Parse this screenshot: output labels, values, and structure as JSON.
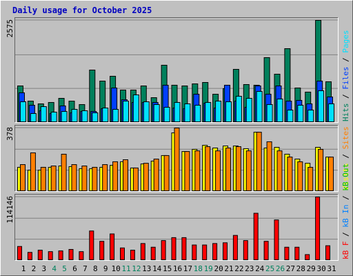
{
  "chart_data": {
    "type": "bar",
    "title": "Daily usage for October 2025",
    "categories": [
      "1",
      "2",
      "3",
      "4",
      "5",
      "6",
      "7",
      "8",
      "9",
      "10",
      "11",
      "12",
      "13",
      "14",
      "15",
      "16",
      "17",
      "18",
      "19",
      "20",
      "21",
      "22",
      "23",
      "24",
      "25",
      "26",
      "27",
      "28",
      "29",
      "30",
      "31"
    ],
    "weekend_color": "#00805c",
    "weekends": [
      false,
      false,
      false,
      true,
      true,
      false,
      false,
      false,
      false,
      false,
      true,
      true,
      false,
      false,
      false,
      false,
      false,
      true,
      true,
      false,
      false,
      false,
      false,
      false,
      true,
      true,
      false,
      false,
      false,
      false,
      false
    ],
    "panels": [
      {
        "ylim": [
          0,
          2575
        ],
        "yticks": [
          2575
        ],
        "series": [
          {
            "name": "Hits",
            "color": "#00805c",
            "values": [
              922,
              539,
              470,
              505,
              609,
              539,
              452,
              1322,
              1044,
              1166,
              818,
              818,
              922,
              626,
              1444,
              940,
              922,
              974,
              1009,
              713,
              853,
              1340,
              957,
              940,
              1636,
              1218,
              1862,
              870,
              766,
              2575,
              1027
            ]
          },
          {
            "name": "Files",
            "color": "#0040ff",
            "values": [
              748,
              435,
              296,
              226,
              418,
              244,
              278,
              278,
              348,
              870,
              574,
              505,
              505,
              505,
              940,
              365,
              348,
              713,
              487,
              365,
              940,
              539,
              383,
              922,
              713,
              922,
              539,
              557,
              470,
              1044,
              644
            ]
          },
          {
            "name": "Pages",
            "color": "#00e0ff",
            "values": [
              522,
              226,
              400,
              261,
              278,
              331,
              296,
              244,
              365,
              331,
              539,
              696,
              522,
              452,
              383,
              505,
              470,
              435,
              505,
              539,
              522,
              661,
              609,
              783,
              452,
              592,
              313,
              435,
              313,
              800,
              470
            ]
          }
        ]
      },
      {
        "ylim": [
          0,
          378
        ],
        "yticks": [
          378
        ],
        "series": [
          {
            "name": "Visits",
            "color": "#ffff00",
            "values": [
              144,
              127,
              127,
              144,
              152,
              148,
              136,
              136,
              144,
              156,
              177,
              140,
              164,
              181,
              214,
              349,
              238,
              251,
              275,
              259,
              271,
              271,
              255,
              353,
              259,
              263,
              222,
              193,
              168,
              263,
              205
            ]
          },
          {
            "name": "Sites",
            "color": "#ff8000",
            "values": [
              160,
              230,
              144,
              152,
              222,
              160,
              152,
              144,
              160,
              177,
              189,
              140,
              168,
              193,
              214,
              378,
              238,
              242,
              267,
              242,
              259,
              267,
              242,
              353,
              296,
              242,
              205,
              177,
              144,
              251,
              205
            ]
          }
        ]
      },
      {
        "ylim": [
          0,
          114146
        ],
        "yticks": [
          114146
        ],
        "series": [
          {
            "name": "kB F",
            "color": "#ff0000",
            "values": [
              25213,
              14597,
              18578,
              15924,
              17251,
              19905,
              15924,
              53080,
              34502,
              47772,
              22559,
              18578,
              30521,
              23886,
              35829,
              41137,
              41137,
              27867,
              27867,
              30521,
              31848,
              45118,
              35829,
              84928,
              34502,
              72985,
              23886,
              23886,
              10616,
              114146,
              26540
            ]
          },
          {
            "name": "kB In",
            "color": "#0080ff"
          },
          {
            "name": "kB Out",
            "color": "#00c000"
          }
        ]
      }
    ]
  }
}
